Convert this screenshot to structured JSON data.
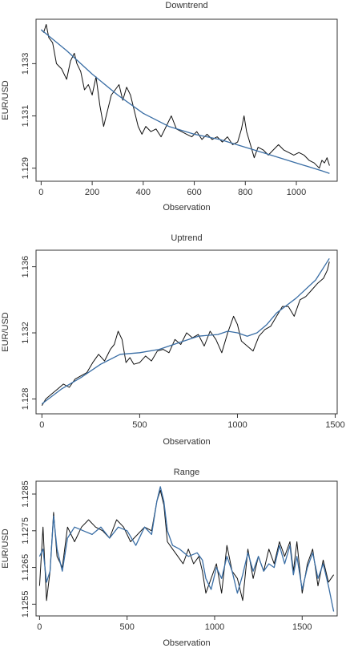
{
  "colors": {
    "price": "#111111",
    "trend": "#3a6ea5",
    "frame": "#333333"
  },
  "chart_data": [
    {
      "type": "line",
      "title": "Downtrend",
      "xlabel": "Observation",
      "ylabel": "EUR/USD",
      "xlim": [
        -20,
        1160
      ],
      "ylim": [
        1.1285,
        1.1347
      ],
      "xticks": [
        0,
        200,
        400,
        600,
        800,
        1000
      ],
      "yticks": [
        1.129,
        1.131,
        1.133
      ],
      "series": [
        {
          "role": "price",
          "x": [
            0,
            10,
            20,
            30,
            45,
            60,
            80,
            100,
            115,
            130,
            140,
            155,
            170,
            185,
            200,
            215,
            230,
            245,
            260,
            275,
            290,
            305,
            320,
            335,
            350,
            365,
            380,
            395,
            410,
            430,
            450,
            470,
            490,
            510,
            530,
            550,
            570,
            590,
            610,
            630,
            650,
            670,
            690,
            710,
            730,
            750,
            770,
            785,
            795,
            805,
            820,
            835,
            850,
            870,
            890,
            910,
            930,
            950,
            970,
            990,
            1010,
            1030,
            1050,
            1070,
            1090,
            1100,
            1110,
            1120,
            1130
          ],
          "y": [
            1.1343,
            1.1342,
            1.1345,
            1.134,
            1.1338,
            1.133,
            1.1328,
            1.1324,
            1.1331,
            1.1334,
            1.133,
            1.1327,
            1.132,
            1.1322,
            1.1318,
            1.1325,
            1.1314,
            1.1306,
            1.1312,
            1.1318,
            1.132,
            1.1322,
            1.1316,
            1.1321,
            1.1318,
            1.1312,
            1.1306,
            1.1303,
            1.1306,
            1.1304,
            1.1305,
            1.1302,
            1.1306,
            1.131,
            1.1305,
            1.1304,
            1.1303,
            1.1302,
            1.1304,
            1.1301,
            1.1303,
            1.1301,
            1.1302,
            1.13,
            1.1302,
            1.1299,
            1.13,
            1.1305,
            1.131,
            1.1304,
            1.1299,
            1.1294,
            1.1298,
            1.1297,
            1.1295,
            1.1297,
            1.1299,
            1.1297,
            1.1296,
            1.1295,
            1.1296,
            1.1295,
            1.1293,
            1.1292,
            1.129,
            1.1293,
            1.1292,
            1.1294,
            1.1291
          ]
        },
        {
          "role": "trend",
          "x": [
            0,
            100,
            200,
            300,
            400,
            500,
            600,
            700,
            800,
            900,
            1000,
            1100,
            1130
          ],
          "y": [
            1.1343,
            1.1335,
            1.1326,
            1.1318,
            1.1311,
            1.1306,
            1.1303,
            1.1301,
            1.1298,
            1.1295,
            1.1292,
            1.1289,
            1.1288
          ]
        }
      ]
    },
    {
      "type": "line",
      "title": "Uptrend",
      "xlabel": "Observation",
      "ylabel": "EUR/USD",
      "xlim": [
        -30,
        1510
      ],
      "ylim": [
        1.1271,
        1.137
      ],
      "xticks": [
        0,
        500,
        1000,
        1500
      ],
      "yticks": [
        1.128,
        1.132,
        1.136
      ],
      "series": [
        {
          "role": "price",
          "x": [
            0,
            20,
            50,
            80,
            110,
            140,
            170,
            200,
            230,
            260,
            290,
            320,
            350,
            370,
            390,
            410,
            430,
            450,
            470,
            500,
            530,
            560,
            590,
            620,
            650,
            680,
            710,
            740,
            770,
            800,
            830,
            860,
            890,
            920,
            950,
            980,
            1000,
            1020,
            1050,
            1080,
            1110,
            1140,
            1170,
            1200,
            1230,
            1260,
            1290,
            1320,
            1350,
            1380,
            1410,
            1440,
            1460,
            1470
          ],
          "y": [
            1.1276,
            1.128,
            1.1283,
            1.1286,
            1.1289,
            1.1287,
            1.1292,
            1.1294,
            1.1296,
            1.1302,
            1.1307,
            1.1303,
            1.131,
            1.1313,
            1.1321,
            1.1316,
            1.1302,
            1.1305,
            1.1301,
            1.1302,
            1.1306,
            1.1303,
            1.1309,
            1.131,
            1.1308,
            1.1316,
            1.1313,
            1.132,
            1.1317,
            1.1319,
            1.1312,
            1.1321,
            1.1316,
            1.1308,
            1.132,
            1.133,
            1.1325,
            1.1315,
            1.1312,
            1.1309,
            1.1318,
            1.1322,
            1.1324,
            1.133,
            1.1336,
            1.1336,
            1.133,
            1.134,
            1.1342,
            1.1346,
            1.135,
            1.1353,
            1.1358,
            1.1363
          ]
        },
        {
          "role": "trend",
          "x": [
            0,
            100,
            200,
            300,
            400,
            500,
            600,
            700,
            800,
            900,
            950,
            1000,
            1050,
            1100,
            1150,
            1200,
            1300,
            1400,
            1470
          ],
          "y": [
            1.1277,
            1.1286,
            1.1293,
            1.1301,
            1.1307,
            1.1308,
            1.131,
            1.1314,
            1.1318,
            1.1319,
            1.1321,
            1.132,
            1.1318,
            1.132,
            1.1325,
            1.1332,
            1.1341,
            1.1352,
            1.1365
          ]
        }
      ]
    },
    {
      "type": "line",
      "title": "Range",
      "xlabel": "Observation",
      "ylabel": "EUR/USD",
      "xlim": [
        -20,
        1700
      ],
      "ylim": [
        1.12518,
        1.12885
      ],
      "xticks": [
        0,
        500,
        1000,
        1500
      ],
      "yticks": [
        1.1255,
        1.1265,
        1.1275,
        1.1285
      ],
      "series": [
        {
          "role": "price",
          "x": [
            0,
            20,
            40,
            60,
            80,
            100,
            130,
            160,
            200,
            240,
            280,
            320,
            360,
            400,
            440,
            480,
            520,
            560,
            600,
            640,
            670,
            690,
            710,
            730,
            760,
            790,
            820,
            850,
            880,
            910,
            930,
            950,
            980,
            1010,
            1040,
            1070,
            1100,
            1130,
            1160,
            1190,
            1220,
            1250,
            1280,
            1310,
            1340,
            1370,
            1400,
            1430,
            1450,
            1470,
            1500,
            1530,
            1560,
            1590,
            1620,
            1650,
            1680
          ],
          "y": [
            1.126,
            1.1276,
            1.1256,
            1.1264,
            1.128,
            1.1268,
            1.1265,
            1.1276,
            1.1272,
            1.1276,
            1.1278,
            1.1276,
            1.1275,
            1.1273,
            1.1278,
            1.1276,
            1.1272,
            1.1274,
            1.1276,
            1.1275,
            1.1283,
            1.1286,
            1.1282,
            1.1272,
            1.127,
            1.1268,
            1.1266,
            1.127,
            1.1266,
            1.1268,
            1.1264,
            1.1258,
            1.1262,
            1.1266,
            1.1258,
            1.1271,
            1.1264,
            1.1262,
            1.1256,
            1.127,
            1.1262,
            1.1268,
            1.1264,
            1.127,
            1.1266,
            1.1272,
            1.1268,
            1.1272,
            1.1264,
            1.1272,
            1.1258,
            1.1266,
            1.127,
            1.126,
            1.1267,
            1.1261,
            1.1263
          ]
        },
        {
          "role": "trend",
          "x": [
            0,
            20,
            40,
            60,
            80,
            100,
            130,
            160,
            200,
            250,
            300,
            350,
            400,
            450,
            500,
            550,
            600,
            640,
            670,
            690,
            710,
            730,
            760,
            800,
            850,
            900,
            930,
            950,
            980,
            1010,
            1040,
            1070,
            1100,
            1130,
            1160,
            1190,
            1220,
            1250,
            1280,
            1310,
            1340,
            1370,
            1400,
            1430,
            1450,
            1470,
            1500,
            1530,
            1560,
            1590,
            1620,
            1650,
            1680
          ],
          "y": [
            1.1268,
            1.127,
            1.1261,
            1.1264,
            1.1279,
            1.127,
            1.1264,
            1.1273,
            1.1276,
            1.1275,
            1.1274,
            1.1276,
            1.1273,
            1.1276,
            1.1275,
            1.1271,
            1.1276,
            1.1274,
            1.1283,
            1.1287,
            1.1283,
            1.1275,
            1.1271,
            1.127,
            1.1268,
            1.1269,
            1.1267,
            1.1262,
            1.1259,
            1.1265,
            1.1262,
            1.1268,
            1.1264,
            1.1258,
            1.1263,
            1.1269,
            1.1264,
            1.1268,
            1.1264,
            1.1266,
            1.1265,
            1.1271,
            1.1266,
            1.1271,
            1.1263,
            1.1268,
            1.1259,
            1.1265,
            1.1269,
            1.1262,
            1.1266,
            1.126,
            1.1253
          ]
        }
      ]
    }
  ]
}
